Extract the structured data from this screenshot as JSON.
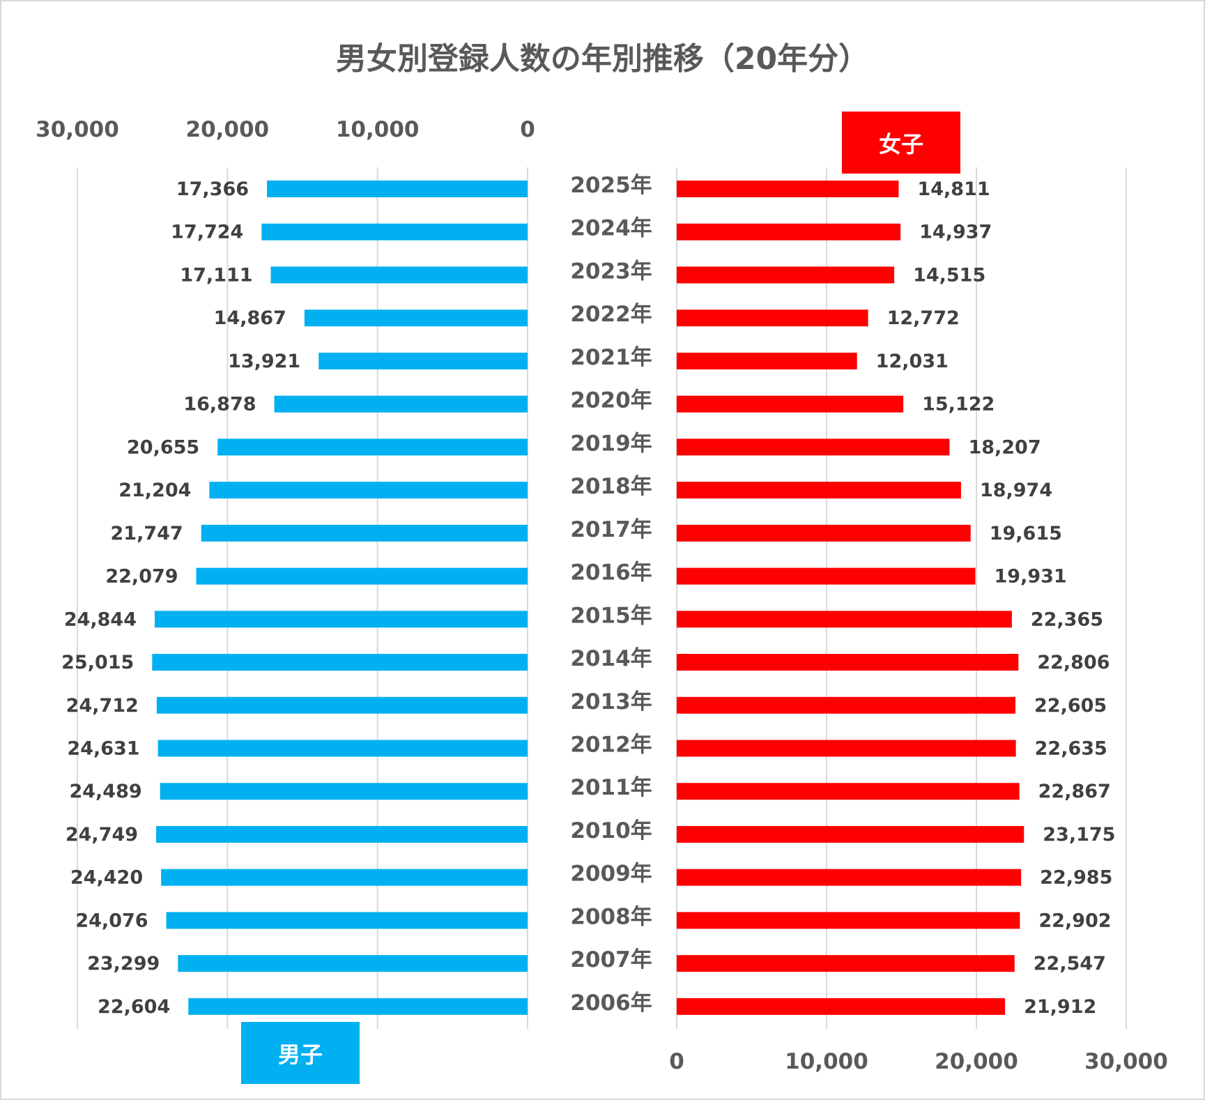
{
  "chart_data": {
    "type": "bar",
    "subtype": "population-pyramid",
    "title": "男女別登録人数の年別推移（20年分）",
    "categories": [
      "2025年",
      "2024年",
      "2023年",
      "2022年",
      "2021年",
      "2020年",
      "2019年",
      "2018年",
      "2017年",
      "2016年",
      "2015年",
      "2014年",
      "2013年",
      "2012年",
      "2011年",
      "2010年",
      "2009年",
      "2008年",
      "2007年",
      "2006年"
    ],
    "series": [
      {
        "name": "男子",
        "color": "#00b0f0",
        "side": "left",
        "values": [
          17366,
          17724,
          17111,
          14867,
          13921,
          16878,
          20655,
          21204,
          21747,
          22079,
          24844,
          25015,
          24712,
          24631,
          24489,
          24749,
          24420,
          24076,
          23299,
          22604
        ],
        "labels": [
          "17,366",
          "17,724",
          "17,111",
          "14,867",
          "13,921",
          "16,878",
          "20,655",
          "21,204",
          "21,747",
          "22,079",
          "24,844",
          "25,015",
          "24,712",
          "24,631",
          "24,489",
          "24,749",
          "24,420",
          "24,076",
          "23,299",
          "22,604"
        ]
      },
      {
        "name": "女子",
        "color": "#ff0000",
        "side": "right",
        "values": [
          14811,
          14937,
          14515,
          12772,
          12031,
          15122,
          18207,
          18974,
          19615,
          19931,
          22365,
          22806,
          22605,
          22635,
          22867,
          23175,
          22985,
          22902,
          22547,
          21912
        ],
        "labels": [
          "14,811",
          "14,937",
          "14,515",
          "12,772",
          "12,031",
          "15,122",
          "18,207",
          "18,974",
          "19,615",
          "19,931",
          "22,365",
          "22,806",
          "22,605",
          "22,635",
          "22,867",
          "23,175",
          "22,985",
          "22,902",
          "22,547",
          "21,912"
        ]
      }
    ],
    "xlim": [
      0,
      30000
    ],
    "left_axis_ticks": [
      "30,000",
      "20,000",
      "10,000",
      "0"
    ],
    "right_axis_ticks": [
      "0",
      "10,000",
      "20,000",
      "30,000"
    ],
    "tick_values": [
      0,
      10000,
      20000,
      30000
    ],
    "grid": true,
    "legend": [
      "女子",
      "男子"
    ]
  }
}
